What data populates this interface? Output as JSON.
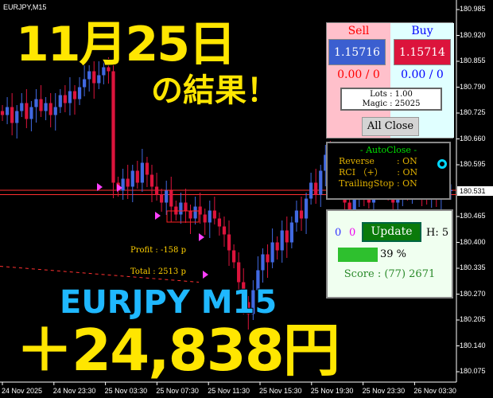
{
  "chart": {
    "symbol_label": "EURJPY,M15",
    "current_price": "180.531",
    "price_axis": [
      "180.985",
      "180.920",
      "180.855",
      "180.790",
      "180.725",
      "180.660",
      "180.595",
      "180.465",
      "180.400",
      "180.335",
      "180.270",
      "180.205",
      "180.140",
      "180.075"
    ],
    "time_axis": [
      "24 Nov 2025",
      "24 Nov 23:30",
      "25 Nov 03:30",
      "25 Nov 07:30",
      "25 Nov 11:30",
      "25 Nov 15:30",
      "25 Nov 19:30",
      "25 Nov 23:30",
      "26 Nov 03:30"
    ],
    "closes": [
      180.72,
      180.74,
      180.7,
      180.73,
      180.75,
      180.71,
      180.74,
      180.76,
      180.73,
      180.75,
      180.72,
      180.74,
      180.77,
      180.75,
      180.78,
      180.76,
      180.79,
      180.81,
      180.83,
      180.8,
      180.82,
      180.84,
      180.83,
      180.55,
      180.53,
      180.56,
      180.54,
      180.58,
      180.55,
      180.6,
      180.57,
      180.54,
      180.52,
      180.5,
      180.53,
      180.49,
      180.47,
      180.5,
      180.48,
      180.46,
      180.49,
      180.47,
      180.45,
      180.48,
      180.46,
      180.44,
      180.42,
      180.38,
      180.35,
      180.3,
      180.25,
      180.22,
      180.28,
      180.33,
      180.37,
      180.35,
      180.4,
      180.38,
      180.43,
      180.4,
      180.45,
      180.48,
      180.46,
      180.51,
      180.55,
      180.52,
      180.58,
      180.62,
      180.57,
      180.6,
      180.55,
      180.5,
      180.48,
      180.52,
      180.56,
      180.53,
      180.5,
      180.54,
      180.57,
      180.55,
      180.52,
      180.5,
      180.53,
      180.55,
      180.52,
      180.54,
      180.56,
      180.53,
      180.51,
      180.54,
      180.52,
      180.55,
      180.53,
      180.531
    ],
    "bull_color": "#4169e1",
    "bear_color": "#dc143c"
  },
  "overlay": {
    "date_title": "11月25日",
    "result_text": "の結果！",
    "pair_tf": "EURJPY  M15",
    "profit_yen": "＋24,838円"
  },
  "trade_labels": {
    "profit": "Profit : -158 p",
    "total": "Total : 2513 p"
  },
  "trade_panel": {
    "sell_label": "Sell",
    "buy_label": "Buy",
    "sell_price": "1.15716",
    "buy_price": "1.15714",
    "sell_pl": "0.00 / 0",
    "buy_pl": "0.00 / 0",
    "lots": "Lots   : 1.00",
    "magic": "Magic : 25025",
    "all_close": "All Close"
  },
  "autoclose": {
    "title": "- AutoClose -",
    "rows": [
      "Reverse        : ON",
      "RCI （+）     : ON",
      "TrailingStop : ON"
    ]
  },
  "score_panel": {
    "count_blue": "0",
    "count_magenta": "0",
    "update": "Update",
    "h": "H: 5",
    "progress_percent": 39,
    "progress_label": "39 %",
    "score": "Score : (77) 2671"
  }
}
